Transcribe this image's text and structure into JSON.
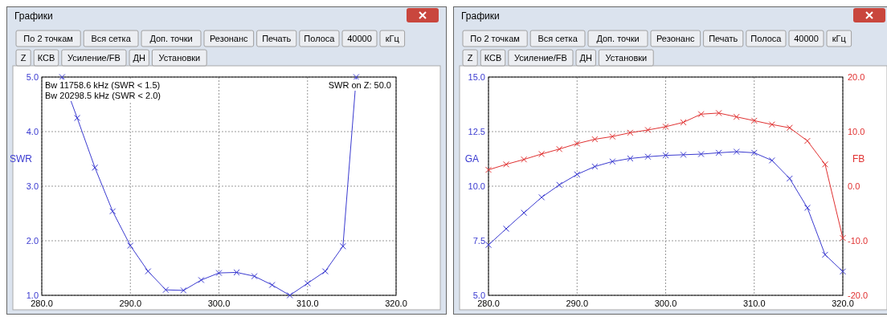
{
  "chart_data": [
    {
      "type": "other",
      "title": "Графики",
      "annotations": [
        "По 2 точкам",
        "Вся сетка",
        "Доп. точки",
        "Резонанс",
        "Печать",
        "Полоса",
        "40000",
        "кГц"
      ]
    },
    {
      "type": "other",
      "annotations": [
        "Z",
        "КСВ",
        "Усиление/FB",
        "ДН",
        "Установки"
      ]
    },
    {
      "type": "line",
      "ylabel": "SWR",
      "marker": "cross",
      "grid": true,
      "annotations": [
        "Bw 11758.6 kHz (SWR < 1.5)",
        "Bw 20298.5 kHz (SWR < 2.0)",
        "SWR on Z: 50.0"
      ],
      "xlim": [
        280,
        320
      ],
      "xticks": [
        {
          "value": 280,
          "label": "280.0"
        },
        {
          "value": 290,
          "label": "290.0"
        },
        {
          "value": 300,
          "label": "300.0"
        },
        {
          "value": 310,
          "label": "310.0"
        },
        {
          "value": 320,
          "label": "320.0"
        }
      ],
      "ylim": [
        1,
        5
      ],
      "yticks": [
        {
          "value": 1,
          "label": "1.0"
        },
        {
          "value": 2,
          "label": "2.0"
        },
        {
          "value": 3,
          "label": "3.0"
        },
        {
          "value": 4,
          "label": "4.0"
        },
        {
          "value": 5,
          "label": "5.0"
        }
      ],
      "x": [
        282.3,
        284,
        286,
        288,
        290,
        292,
        294,
        296,
        298,
        300,
        302,
        304,
        306,
        308,
        310,
        312,
        314,
        315.5
      ],
      "series": [
        {
          "color": "#3a3ad0",
          "values": [
            5.0,
            4.25,
            3.34,
            2.54,
            1.91,
            1.44,
            1.1,
            1.09,
            1.28,
            1.41,
            1.42,
            1.35,
            1.19,
            1.0,
            1.22,
            1.44,
            1.9,
            5.0
          ]
        }
      ]
    },
    {
      "type": "other",
      "title": "Графики",
      "annotations": [
        "По 2 точкам",
        "Вся сетка",
        "Доп. точки",
        "Резонанс",
        "Печать",
        "Полоса",
        "40000",
        "кГц"
      ]
    },
    {
      "type": "other",
      "annotations": [
        "Z",
        "КСВ",
        "Усиление/FB",
        "ДН",
        "Установки"
      ]
    },
    {
      "type": "line",
      "ylabel": "GA",
      "y2label": "FB",
      "marker": "cross",
      "grid": true,
      "xlim": [
        280,
        320
      ],
      "xticks": [
        {
          "value": 280,
          "label": "280.0"
        },
        {
          "value": 290,
          "label": "290.0"
        },
        {
          "value": 300,
          "label": "300.0"
        },
        {
          "value": 310,
          "label": "310.0"
        },
        {
          "value": 320,
          "label": "320.0"
        }
      ],
      "ylim": [
        5,
        15
      ],
      "yticks": [
        {
          "value": 5,
          "label": "5.0"
        },
        {
          "value": 7.5,
          "label": "7.5"
        },
        {
          "value": 10,
          "label": "10.0"
        },
        {
          "value": 12.5,
          "label": "12.5"
        },
        {
          "value": 15,
          "label": "15.0"
        }
      ],
      "y2lim": [
        -20,
        20
      ],
      "y2ticks": [
        {
          "value": -20,
          "label": "-20.0"
        },
        {
          "value": -10,
          "label": "-10.0"
        },
        {
          "value": 0,
          "label": "0.0"
        },
        {
          "value": 10,
          "label": "10.0"
        },
        {
          "value": 20,
          "label": "20.0"
        }
      ],
      "x": [
        280,
        282,
        284,
        286,
        288,
        290,
        292,
        294,
        296,
        298,
        300,
        302,
        304,
        306,
        308,
        310,
        312,
        314,
        316,
        318,
        320
      ],
      "series": [
        {
          "color": "#3a3ad0",
          "values": [
            7.31,
            8.05,
            8.78,
            9.49,
            10.06,
            10.54,
            10.9,
            11.13,
            11.27,
            11.35,
            11.41,
            11.44,
            11.47,
            11.53,
            11.58,
            11.53,
            11.18,
            10.35,
            9.01,
            6.86,
            6.09
          ]
        },
        {
          "color": "#e03030",
          "axis": "y2",
          "values": [
            3.0,
            4.0,
            4.9,
            5.9,
            6.8,
            7.8,
            8.6,
            9.1,
            9.8,
            10.3,
            10.9,
            11.7,
            13.2,
            13.4,
            12.7,
            12.0,
            11.3,
            10.7,
            8.3,
            4.0,
            -9.5
          ]
        }
      ]
    }
  ]
}
